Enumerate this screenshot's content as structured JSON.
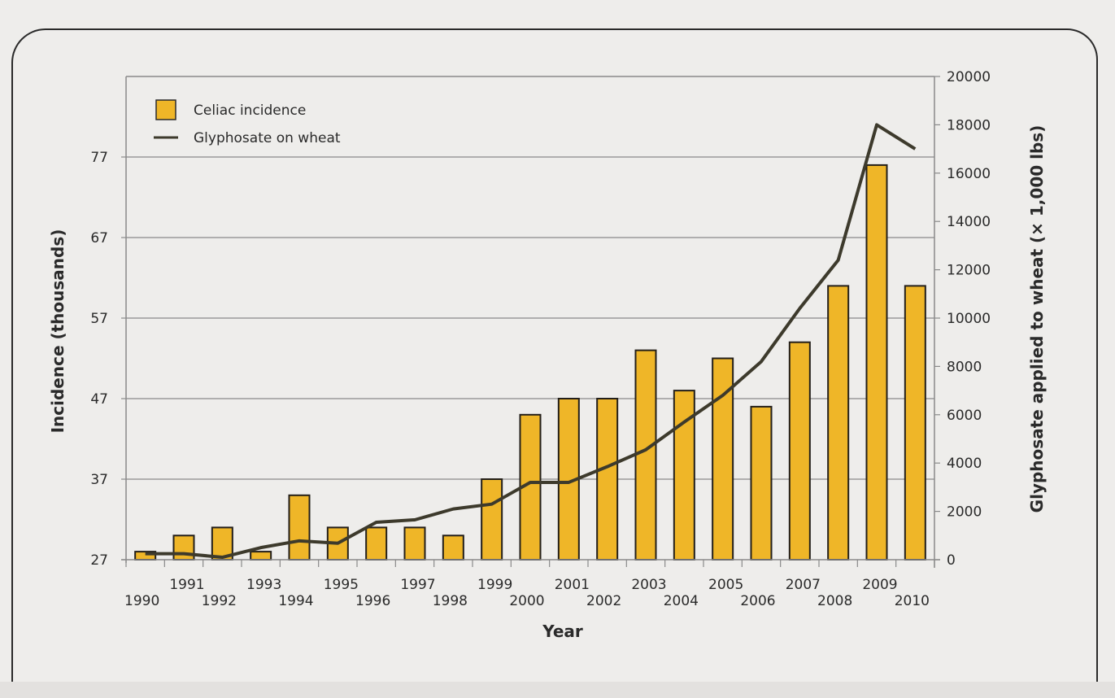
{
  "chart_data": {
    "type": "bar+line",
    "title": "",
    "xlabel": "Year",
    "ylabel": "Incidence (thousands)",
    "y2label": "Glyphosate applied to wheat (× 1,000 lbs)",
    "categories": [
      "1990",
      "1991",
      "1992",
      "1993",
      "1994",
      "1995",
      "1996",
      "1997",
      "1998",
      "1999",
      "2000",
      "2001",
      "2002",
      "2003",
      "2004",
      "2005",
      "2006",
      "2007",
      "2008",
      "2009",
      "2010"
    ],
    "series": [
      {
        "name": "Celiac incidence",
        "type": "bar",
        "axis": "left",
        "color": "#efb628",
        "values": [
          28,
          30,
          31,
          28,
          35,
          31,
          31,
          31,
          30,
          37,
          45,
          47,
          47,
          53,
          48,
          52,
          46,
          54,
          61,
          76,
          61
        ]
      },
      {
        "name": "Glyphosate on wheat",
        "type": "line",
        "axis": "right",
        "color": "#3d3a2c",
        "values": [
          250,
          250,
          100,
          500,
          780,
          680,
          1550,
          1650,
          2100,
          2300,
          3200,
          3200,
          3850,
          4550,
          5700,
          6800,
          8200,
          10400,
          12400,
          18000,
          17000
        ]
      }
    ],
    "ylim": [
      27,
      87
    ],
    "yticks": [
      27,
      37,
      47,
      57,
      67,
      77
    ],
    "y2lim": [
      0,
      20000
    ],
    "y2ticks": [
      0,
      2000,
      4000,
      6000,
      8000,
      10000,
      12000,
      14000,
      16000,
      18000,
      20000
    ],
    "grid": true,
    "legend": "top-left"
  }
}
